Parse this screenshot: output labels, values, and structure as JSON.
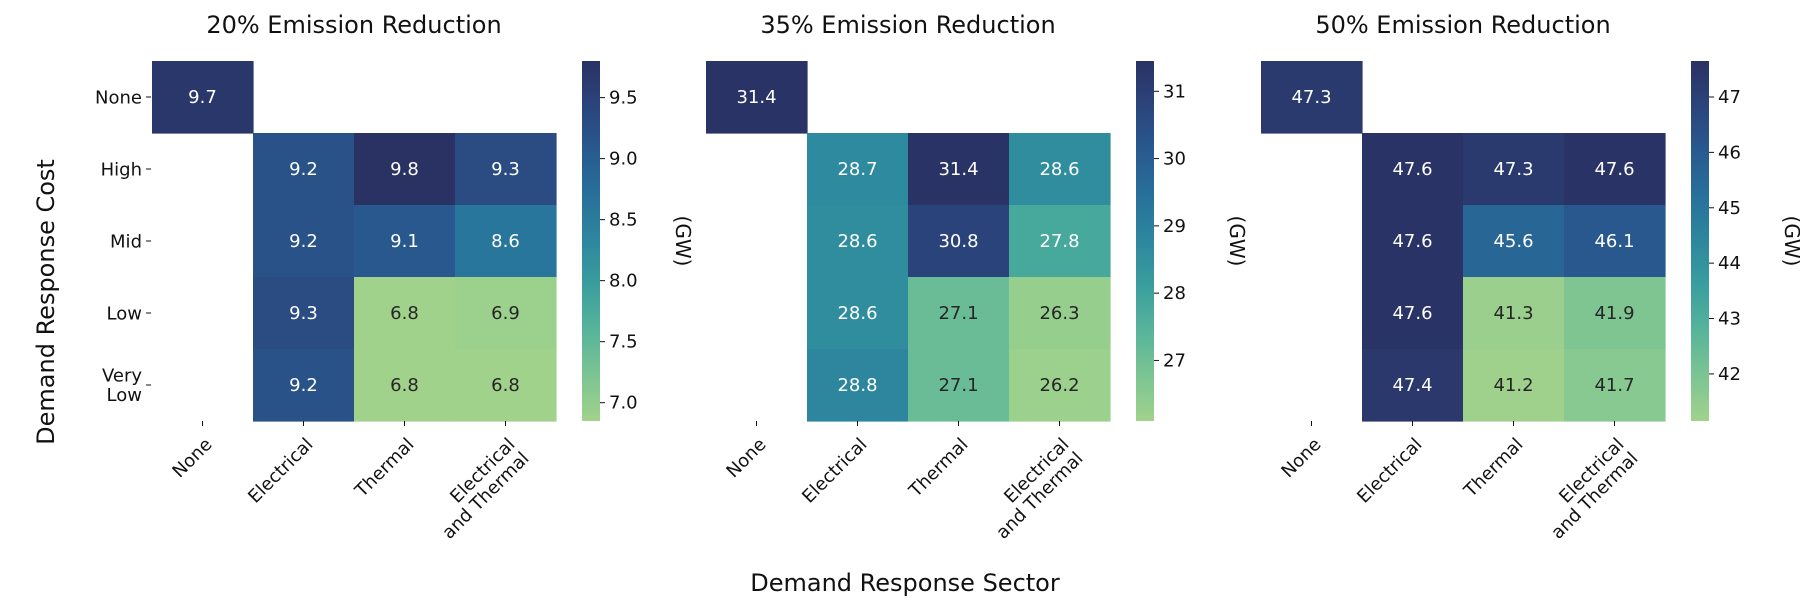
{
  "chart_data": {
    "type": "heatmap",
    "xlabel": "Demand Response Sector",
    "ylabel": "Demand Response Cost",
    "x_categories": [
      [
        "None"
      ],
      [
        "Electrical"
      ],
      [
        "Thermal"
      ],
      [
        "Electrical",
        "and Thermal"
      ]
    ],
    "y_categories": [
      [
        "None"
      ],
      [
        "High"
      ],
      [
        "Mid"
      ],
      [
        "Low"
      ],
      [
        "Very",
        "Low"
      ]
    ],
    "colormap": [
      "#a1d28c",
      "#7cc493",
      "#57b49a",
      "#3a9e9e",
      "#2d879e",
      "#28709b",
      "#285a8f",
      "#2b447c",
      "#2a3264"
    ],
    "panels": [
      {
        "title": "20% Emission Reduction",
        "colorbar_label": "(GW)",
        "colorbar_range": [
          6.85,
          9.8
        ],
        "colorbar_ticks": [
          7.0,
          7.5,
          8.0,
          8.5,
          9.0,
          9.5
        ],
        "colorbar_tick_labels": [
          "7.0",
          "7.5",
          "8.0",
          "8.5",
          "9.0",
          "9.5"
        ],
        "values": [
          [
            9.7,
            null,
            null,
            null
          ],
          [
            null,
            9.2,
            9.8,
            9.3
          ],
          [
            null,
            9.2,
            9.1,
            8.6
          ],
          [
            null,
            9.3,
            6.8,
            6.9
          ],
          [
            null,
            9.2,
            6.8,
            6.8
          ]
        ],
        "cell_labels": [
          [
            "9.7",
            "",
            "",
            ""
          ],
          [
            "",
            "9.2",
            "9.8",
            "9.3"
          ],
          [
            "",
            "9.2",
            "9.1",
            "8.6"
          ],
          [
            "",
            "9.3",
            "6.8",
            "6.9"
          ],
          [
            "",
            "9.2",
            "6.8",
            "6.8"
          ]
        ]
      },
      {
        "title": "35% Emission Reduction",
        "colorbar_label": "(GW)",
        "colorbar_range": [
          26.1,
          31.45
        ],
        "colorbar_ticks": [
          27,
          28,
          29,
          30,
          31
        ],
        "colorbar_tick_labels": [
          "27",
          "28",
          "29",
          "30",
          "31"
        ],
        "values": [
          [
            31.4,
            null,
            null,
            null
          ],
          [
            null,
            28.7,
            31.4,
            28.6
          ],
          [
            null,
            28.6,
            30.8,
            27.8
          ],
          [
            null,
            28.6,
            27.1,
            26.3
          ],
          [
            null,
            28.8,
            27.1,
            26.2
          ]
        ],
        "cell_labels": [
          [
            "31.4",
            "",
            "",
            ""
          ],
          [
            "",
            "28.7",
            "31.4",
            "28.6"
          ],
          [
            "",
            "28.6",
            "30.8",
            "27.8"
          ],
          [
            "",
            "28.6",
            "27.1",
            "26.3"
          ],
          [
            "",
            "28.8",
            "27.1",
            "26.2"
          ]
        ]
      },
      {
        "title": "50% Emission Reduction",
        "colorbar_label": "(GW)",
        "colorbar_range": [
          41.15,
          47.65
        ],
        "colorbar_ticks": [
          42,
          43,
          44,
          45,
          46,
          47
        ],
        "colorbar_tick_labels": [
          "42",
          "43",
          "44",
          "45",
          "46",
          "47"
        ],
        "values": [
          [
            47.3,
            null,
            null,
            null
          ],
          [
            null,
            47.6,
            47.3,
            47.6
          ],
          [
            null,
            47.6,
            45.6,
            46.1
          ],
          [
            null,
            47.6,
            41.3,
            41.9
          ],
          [
            null,
            47.4,
            41.2,
            41.7
          ]
        ],
        "cell_labels": [
          [
            "47.3",
            "",
            "",
            ""
          ],
          [
            "",
            "47.6",
            "47.3",
            "47.6"
          ],
          [
            "",
            "47.6",
            "45.6",
            "46.1"
          ],
          [
            "",
            "47.6",
            "41.3",
            "41.9"
          ],
          [
            "",
            "47.4",
            "41.2",
            "41.7"
          ]
        ]
      }
    ]
  }
}
